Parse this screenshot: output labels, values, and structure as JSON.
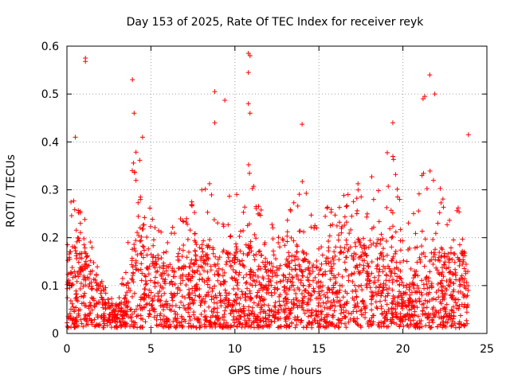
{
  "chart_data": {
    "type": "scatter",
    "title": "Day 153 of 2025, Rate Of TEC Index for receiver reyk",
    "xlabel": "GPS time / hours",
    "ylabel": "ROTI / TECUs",
    "xlim": [
      0,
      25
    ],
    "ylim": [
      0,
      0.6
    ],
    "x_ticks": [
      "0",
      "5",
      "10",
      "15",
      "20",
      "25"
    ],
    "y_ticks": [
      "0",
      "0.1",
      "0.2",
      "0.3",
      "0.4",
      "0.5",
      "0.6"
    ],
    "grid": true,
    "marker": "plus",
    "color": "#ff0000",
    "profile": {
      "x": [
        0.0,
        0.5,
        1.0,
        1.5,
        2.0,
        2.5,
        3.0,
        3.5,
        4.0,
        4.5,
        5.0,
        5.5,
        6.0,
        6.5,
        7.0,
        7.5,
        8.0,
        8.5,
        9.0,
        9.5,
        10.0,
        10.5,
        11.0,
        11.5,
        12.0,
        12.5,
        13.0,
        13.5,
        14.0,
        14.5,
        15.0,
        15.5,
        16.0,
        16.5,
        17.0,
        17.5,
        18.0,
        18.5,
        19.0,
        19.5,
        20.0,
        20.5,
        21.0,
        21.5,
        22.0,
        22.5,
        23.0,
        23.5,
        23.9
      ],
      "y_typical": [
        0.1,
        0.12,
        0.11,
        0.08,
        0.06,
        0.04,
        0.03,
        0.04,
        0.12,
        0.14,
        0.1,
        0.09,
        0.08,
        0.09,
        0.1,
        0.1,
        0.11,
        0.11,
        0.1,
        0.1,
        0.1,
        0.11,
        0.11,
        0.1,
        0.09,
        0.09,
        0.09,
        0.1,
        0.1,
        0.09,
        0.09,
        0.1,
        0.11,
        0.11,
        0.11,
        0.12,
        0.12,
        0.12,
        0.12,
        0.11,
        0.06,
        0.06,
        0.1,
        0.11,
        0.11,
        0.1,
        0.1,
        0.1,
        0.1
      ],
      "y_upper": [
        0.3,
        0.3,
        0.25,
        0.18,
        0.12,
        0.08,
        0.06,
        0.15,
        0.45,
        0.35,
        0.25,
        0.22,
        0.22,
        0.24,
        0.25,
        0.28,
        0.3,
        0.35,
        0.3,
        0.28,
        0.3,
        0.38,
        0.35,
        0.28,
        0.25,
        0.24,
        0.25,
        0.28,
        0.35,
        0.28,
        0.26,
        0.27,
        0.28,
        0.3,
        0.31,
        0.32,
        0.34,
        0.36,
        0.38,
        0.42,
        0.2,
        0.25,
        0.33,
        0.35,
        0.33,
        0.28,
        0.27,
        0.28,
        0.4
      ]
    },
    "outliers": [
      {
        "x": 1.1,
        "y": 0.575
      },
      {
        "x": 1.1,
        "y": 0.568
      },
      {
        "x": 0.5,
        "y": 0.41
      },
      {
        "x": 3.9,
        "y": 0.53
      },
      {
        "x": 4.5,
        "y": 0.41
      },
      {
        "x": 8.8,
        "y": 0.505
      },
      {
        "x": 9.4,
        "y": 0.487
      },
      {
        "x": 10.8,
        "y": 0.585
      },
      {
        "x": 10.9,
        "y": 0.58
      },
      {
        "x": 10.8,
        "y": 0.545
      },
      {
        "x": 10.8,
        "y": 0.48
      },
      {
        "x": 10.9,
        "y": 0.46
      },
      {
        "x": 14.0,
        "y": 0.437
      },
      {
        "x": 21.2,
        "y": 0.49
      },
      {
        "x": 21.3,
        "y": 0.495
      },
      {
        "x": 21.6,
        "y": 0.54
      },
      {
        "x": 21.9,
        "y": 0.5
      },
      {
        "x": 19.4,
        "y": 0.44
      },
      {
        "x": 8.8,
        "y": 0.44
      },
      {
        "x": 4.0,
        "y": 0.46
      },
      {
        "x": 23.9,
        "y": 0.415
      }
    ]
  }
}
